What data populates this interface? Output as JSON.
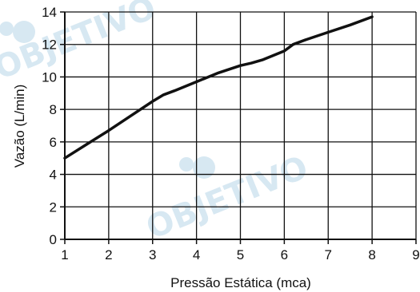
{
  "watermark": {
    "text": "OBJETIVO",
    "color": "#d7e8f2"
  },
  "chart_data": {
    "type": "line",
    "title": "",
    "xlabel": "Pressão Estática (mca)",
    "ylabel": "Vazão (L/min)",
    "xlim": [
      1,
      9
    ],
    "ylim": [
      0,
      14
    ],
    "xticks": [
      "1",
      "2",
      "3",
      "4",
      "5",
      "6",
      "7",
      "8",
      "9"
    ],
    "yticks": [
      "0",
      "2",
      "4",
      "6",
      "8",
      "10",
      "12",
      "14"
    ],
    "grid": true,
    "series": [
      {
        "color": "#111111",
        "x": [
          1.0,
          1.5,
          2.0,
          2.5,
          3.0,
          3.25,
          3.5,
          4.0,
          4.5,
          5.0,
          5.25,
          5.5,
          6.0,
          6.2,
          6.5,
          7.0,
          7.5,
          8.0
        ],
        "y": [
          5.0,
          5.85,
          6.7,
          7.6,
          8.5,
          8.9,
          9.15,
          9.7,
          10.25,
          10.7,
          10.85,
          11.05,
          11.6,
          12.0,
          12.3,
          12.75,
          13.2,
          13.7
        ]
      }
    ]
  }
}
